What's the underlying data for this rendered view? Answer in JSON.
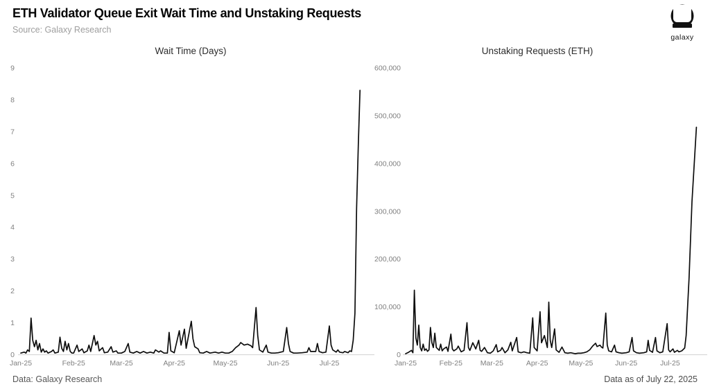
{
  "header": {
    "title": "ETH Validator Queue Exit Wait Time and Unstaking Requests",
    "source": "Source: Galaxy Research",
    "logo_text": "galaxy"
  },
  "footer": {
    "left": "Data: Galaxy Research",
    "right": "Data as of July 22, 2025"
  },
  "colors": {
    "line": "#0c0c0c",
    "axis": "#d9d9d9",
    "tick_label": "#7f7f7f",
    "title": "#050505",
    "subtitle": "#9e9e9e",
    "chart_title": "#2c2c2c",
    "footer": "#565656",
    "background": "#ffffff",
    "logo": "#111111"
  },
  "chart_data": [
    {
      "type": "line",
      "title": "Wait Time (Days)",
      "line_name": "wait-time-line",
      "legend": "none",
      "grid": false,
      "xlabel": "",
      "ylabel": "",
      "xlim": [
        0,
        205
      ],
      "ylim": [
        0,
        9
      ],
      "x_tick_labels": [
        "Jan-25",
        "Feb-25",
        "Mar-25",
        "Apr-25",
        "May-25",
        "Jun-25",
        "Jul-25"
      ],
      "x_tick_days": [
        0,
        31,
        59,
        90,
        120,
        151,
        181
      ],
      "y_ticks": [
        0,
        1,
        2,
        3,
        4,
        5,
        6,
        7,
        8,
        9
      ],
      "y_tick_labels": [
        "0",
        "1",
        "2",
        "3",
        "4",
        "5",
        "6",
        "7",
        "8",
        "9"
      ],
      "points": [
        [
          0,
          0.05
        ],
        [
          2,
          0.08
        ],
        [
          3,
          0.05
        ],
        [
          4,
          0.15
        ],
        [
          5,
          0.1
        ],
        [
          6,
          1.15
        ],
        [
          7,
          0.45
        ],
        [
          8,
          0.25
        ],
        [
          9,
          0.45
        ],
        [
          10,
          0.15
        ],
        [
          11,
          0.35
        ],
        [
          12,
          0.08
        ],
        [
          13,
          0.18
        ],
        [
          14,
          0.08
        ],
        [
          15,
          0.12
        ],
        [
          16,
          0.05
        ],
        [
          18,
          0.1
        ],
        [
          19,
          0.15
        ],
        [
          20,
          0.05
        ],
        [
          22,
          0.08
        ],
        [
          23,
          0.55
        ],
        [
          24,
          0.2
        ],
        [
          25,
          0.1
        ],
        [
          26,
          0.42
        ],
        [
          27,
          0.15
        ],
        [
          28,
          0.35
        ],
        [
          29,
          0.1
        ],
        [
          30,
          0.05
        ],
        [
          31,
          0.05
        ],
        [
          33,
          0.3
        ],
        [
          34,
          0.1
        ],
        [
          36,
          0.18
        ],
        [
          37,
          0.06
        ],
        [
          39,
          0.12
        ],
        [
          40,
          0.3
        ],
        [
          41,
          0.1
        ],
        [
          43,
          0.6
        ],
        [
          44,
          0.3
        ],
        [
          45,
          0.42
        ],
        [
          46,
          0.12
        ],
        [
          48,
          0.22
        ],
        [
          49,
          0.06
        ],
        [
          51,
          0.08
        ],
        [
          53,
          0.25
        ],
        [
          54,
          0.08
        ],
        [
          56,
          0.12
        ],
        [
          57,
          0.05
        ],
        [
          59,
          0.05
        ],
        [
          61,
          0.1
        ],
        [
          63,
          0.35
        ],
        [
          64,
          0.08
        ],
        [
          66,
          0.05
        ],
        [
          68,
          0.1
        ],
        [
          70,
          0.05
        ],
        [
          72,
          0.1
        ],
        [
          74,
          0.05
        ],
        [
          76,
          0.08
        ],
        [
          78,
          0.05
        ],
        [
          79,
          0.15
        ],
        [
          81,
          0.08
        ],
        [
          82,
          0.12
        ],
        [
          84,
          0.05
        ],
        [
          86,
          0.05
        ],
        [
          87,
          0.7
        ],
        [
          88,
          0.12
        ],
        [
          90,
          0.06
        ],
        [
          93,
          0.75
        ],
        [
          94,
          0.3
        ],
        [
          96,
          0.8
        ],
        [
          97,
          0.2
        ],
        [
          100,
          1.05
        ],
        [
          101,
          0.5
        ],
        [
          102,
          0.25
        ],
        [
          104,
          0.18
        ],
        [
          105,
          0.06
        ],
        [
          107,
          0.05
        ],
        [
          109,
          0.1
        ],
        [
          111,
          0.05
        ],
        [
          114,
          0.08
        ],
        [
          116,
          0.05
        ],
        [
          118,
          0.08
        ],
        [
          120,
          0.05
        ],
        [
          122,
          0.05
        ],
        [
          124,
          0.1
        ],
        [
          126,
          0.22
        ],
        [
          128,
          0.3
        ],
        [
          129,
          0.38
        ],
        [
          131,
          0.3
        ],
        [
          133,
          0.33
        ],
        [
          135,
          0.28
        ],
        [
          136,
          0.22
        ],
        [
          138,
          1.48
        ],
        [
          139,
          0.6
        ],
        [
          140,
          0.15
        ],
        [
          142,
          0.08
        ],
        [
          144,
          0.3
        ],
        [
          145,
          0.08
        ],
        [
          147,
          0.05
        ],
        [
          149,
          0.05
        ],
        [
          151,
          0.06
        ],
        [
          154,
          0.1
        ],
        [
          156,
          0.85
        ],
        [
          157,
          0.35
        ],
        [
          158,
          0.1
        ],
        [
          160,
          0.05
        ],
        [
          162,
          0.05
        ],
        [
          165,
          0.06
        ],
        [
          168,
          0.08
        ],
        [
          169,
          0.22
        ],
        [
          170,
          0.1
        ],
        [
          173,
          0.1
        ],
        [
          174,
          0.35
        ],
        [
          175,
          0.1
        ],
        [
          177,
          0.06
        ],
        [
          179,
          0.08
        ],
        [
          181,
          0.9
        ],
        [
          182,
          0.3
        ],
        [
          183,
          0.15
        ],
        [
          185,
          0.08
        ],
        [
          186,
          0.15
        ],
        [
          187,
          0.08
        ],
        [
          189,
          0.06
        ],
        [
          190,
          0.1
        ],
        [
          192,
          0.06
        ],
        [
          193,
          0.12
        ],
        [
          194,
          0.1
        ],
        [
          195,
          0.45
        ],
        [
          196,
          1.3
        ],
        [
          197,
          4.6
        ],
        [
          198,
          6.6
        ],
        [
          199,
          8.3
        ]
      ]
    },
    {
      "type": "line",
      "title": "Unstaking Requests (ETH)",
      "line_name": "unstaking-requests-line",
      "legend": "none",
      "grid": false,
      "xlabel": "",
      "ylabel": "",
      "xlim": [
        0,
        205
      ],
      "ylim": [
        0,
        600000
      ],
      "x_tick_labels": [
        "Jan-25",
        "Feb-25",
        "Mar-25",
        "Apr-25",
        "May-25",
        "Jun-25",
        "Jul-25"
      ],
      "x_tick_days": [
        0,
        31,
        59,
        90,
        120,
        151,
        181
      ],
      "y_ticks": [
        0,
        100000,
        200000,
        300000,
        400000,
        500000,
        600000
      ],
      "y_tick_labels": [
        "0",
        "100,000",
        "200,000",
        "300,000",
        "400,000",
        "500,000",
        "600,000"
      ],
      "points": [
        [
          0,
          2000
        ],
        [
          2,
          5000
        ],
        [
          4,
          9000
        ],
        [
          5,
          4000
        ],
        [
          6,
          135000
        ],
        [
          7,
          35000
        ],
        [
          8,
          20000
        ],
        [
          9,
          62000
        ],
        [
          10,
          15000
        ],
        [
          11,
          8000
        ],
        [
          12,
          22000
        ],
        [
          13,
          9000
        ],
        [
          14,
          12000
        ],
        [
          15,
          7000
        ],
        [
          16,
          10000
        ],
        [
          17,
          57000
        ],
        [
          18,
          25000
        ],
        [
          19,
          15000
        ],
        [
          20,
          45000
        ],
        [
          21,
          15000
        ],
        [
          23,
          9000
        ],
        [
          24,
          22000
        ],
        [
          25,
          8000
        ],
        [
          26,
          12000
        ],
        [
          28,
          16000
        ],
        [
          29,
          7000
        ],
        [
          31,
          43000
        ],
        [
          32,
          12000
        ],
        [
          33,
          8000
        ],
        [
          35,
          12000
        ],
        [
          36,
          18000
        ],
        [
          38,
          6000
        ],
        [
          40,
          9000
        ],
        [
          42,
          67000
        ],
        [
          43,
          15000
        ],
        [
          44,
          9000
        ],
        [
          46,
          25000
        ],
        [
          48,
          12000
        ],
        [
          50,
          30000
        ],
        [
          51,
          9000
        ],
        [
          52,
          7000
        ],
        [
          54,
          15000
        ],
        [
          56,
          4000
        ],
        [
          58,
          3000
        ],
        [
          60,
          8000
        ],
        [
          62,
          21000
        ],
        [
          63,
          6000
        ],
        [
          65,
          9000
        ],
        [
          66,
          15000
        ],
        [
          68,
          4000
        ],
        [
          70,
          10000
        ],
        [
          72,
          26000
        ],
        [
          73,
          8000
        ],
        [
          76,
          36000
        ],
        [
          77,
          6000
        ],
        [
          79,
          4000
        ],
        [
          81,
          6000
        ],
        [
          83,
          4000
        ],
        [
          85,
          3000
        ],
        [
          87,
          77000
        ],
        [
          88,
          15000
        ],
        [
          90,
          8000
        ],
        [
          92,
          90000
        ],
        [
          93,
          25000
        ],
        [
          95,
          40000
        ],
        [
          97,
          15000
        ],
        [
          98,
          110000
        ],
        [
          99,
          30000
        ],
        [
          100,
          15000
        ],
        [
          102,
          54000
        ],
        [
          103,
          10000
        ],
        [
          105,
          5000
        ],
        [
          107,
          16000
        ],
        [
          109,
          4000
        ],
        [
          111,
          3000
        ],
        [
          113,
          4000
        ],
        [
          116,
          2000
        ],
        [
          118,
          3000
        ],
        [
          120,
          3000
        ],
        [
          122,
          4000
        ],
        [
          124,
          6000
        ],
        [
          126,
          10000
        ],
        [
          128,
          18000
        ],
        [
          130,
          24000
        ],
        [
          131,
          17000
        ],
        [
          133,
          20000
        ],
        [
          134,
          16000
        ],
        [
          135,
          14000
        ],
        [
          137,
          87000
        ],
        [
          138,
          20000
        ],
        [
          139,
          8000
        ],
        [
          141,
          6000
        ],
        [
          143,
          20000
        ],
        [
          144,
          6000
        ],
        [
          146,
          4000
        ],
        [
          148,
          3000
        ],
        [
          151,
          4000
        ],
        [
          153,
          6000
        ],
        [
          155,
          36000
        ],
        [
          156,
          8000
        ],
        [
          158,
          4000
        ],
        [
          160,
          3000
        ],
        [
          163,
          4000
        ],
        [
          165,
          6000
        ],
        [
          166,
          30000
        ],
        [
          167,
          9000
        ],
        [
          169,
          5000
        ],
        [
          171,
          36000
        ],
        [
          172,
          8000
        ],
        [
          174,
          4000
        ],
        [
          176,
          6000
        ],
        [
          179,
          65000
        ],
        [
          180,
          10000
        ],
        [
          181,
          6000
        ],
        [
          183,
          12000
        ],
        [
          184,
          5000
        ],
        [
          186,
          9000
        ],
        [
          187,
          6000
        ],
        [
          189,
          8000
        ],
        [
          191,
          14000
        ],
        [
          192,
          40000
        ],
        [
          194,
          160000
        ],
        [
          196,
          320000
        ],
        [
          199,
          476000
        ]
      ]
    }
  ]
}
